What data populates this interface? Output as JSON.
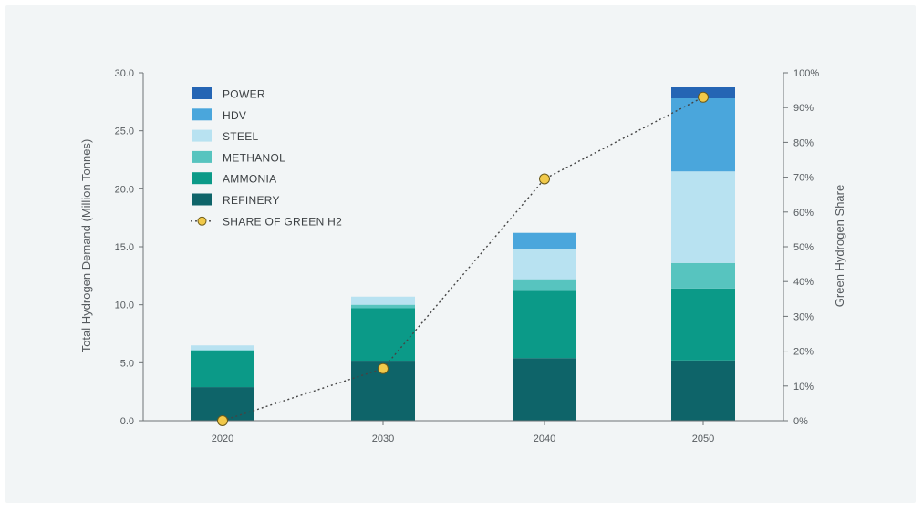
{
  "chart_data": {
    "type": "bar",
    "stacked": true,
    "categories": [
      "2020",
      "2030",
      "2040",
      "2050"
    ],
    "ylabel": "Total Hydrogen Demand (Million Tonnes)",
    "ylabel_right": "Green Hydrogen Share",
    "ylim": [
      0,
      30
    ],
    "yticks": [
      "0.0",
      "5.0",
      "10.0",
      "15.0",
      "20.0",
      "25.0",
      "30.0"
    ],
    "ylim_right": [
      0,
      100
    ],
    "yticks_right": [
      "0%",
      "10%",
      "20%",
      "30%",
      "40%",
      "50%",
      "60%",
      "70%",
      "80%",
      "90%",
      "100%"
    ],
    "series": [
      {
        "name": "REFINERY",
        "color": "#0e6469",
        "values": [
          2.9,
          5.1,
          5.4,
          5.2
        ]
      },
      {
        "name": "AMMONIA",
        "color": "#0b9a88",
        "values": [
          3.1,
          4.6,
          5.8,
          6.2
        ]
      },
      {
        "name": "METHANOL",
        "color": "#57c4bf",
        "values": [
          0.1,
          0.3,
          1.0,
          2.2
        ]
      },
      {
        "name": "STEEL",
        "color": "#b8e2f1",
        "values": [
          0.4,
          0.7,
          2.6,
          7.9
        ]
      },
      {
        "name": "HDV",
        "color": "#4aa6dc",
        "values": [
          0.0,
          0.0,
          1.4,
          6.3
        ]
      },
      {
        "name": "POWER",
        "color": "#2565b4",
        "values": [
          0.0,
          0.0,
          0.0,
          1.0
        ]
      }
    ],
    "line_series": {
      "name": "SHARE OF GREEN H2",
      "axis": "right",
      "values": [
        0,
        15,
        69.5,
        93
      ],
      "color": "#444444",
      "marker_color": "#f1c94a"
    },
    "legend": [
      "POWER",
      "HDV",
      "STEEL",
      "METHANOL",
      "AMMONIA",
      "REFINERY",
      "SHARE OF GREEN H2"
    ],
    "legend_position": "top-left",
    "grid": false
  }
}
